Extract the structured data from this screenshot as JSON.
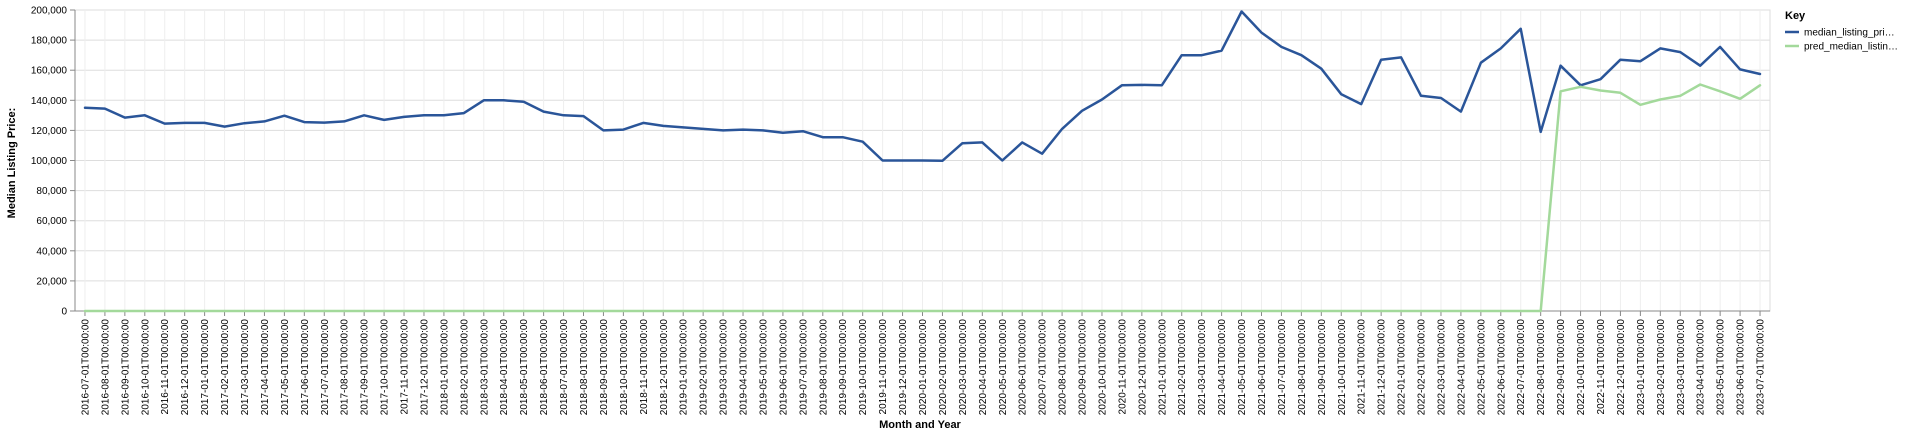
{
  "chart_data": {
    "type": "line",
    "xlabel": "Month and Year",
    "ylabel": "Median Listing Price:",
    "ylim": [
      0,
      200000
    ],
    "y_ticks": [
      "0",
      "20,000",
      "40,000",
      "60,000",
      "80,000",
      "100,000",
      "120,000",
      "140,000",
      "160,000",
      "180,000",
      "200,000"
    ],
    "grid": true,
    "legend": {
      "title": "Key",
      "placement": "right"
    },
    "x": [
      "2016-07-01T00:00:00",
      "2016-08-01T00:00:00",
      "2016-09-01T00:00:00",
      "2016-10-01T00:00:00",
      "2016-11-01T00:00:00",
      "2016-12-01T00:00:00",
      "2017-01-01T00:00:00",
      "2017-02-01T00:00:00",
      "2017-03-01T00:00:00",
      "2017-04-01T00:00:00",
      "2017-05-01T00:00:00",
      "2017-06-01T00:00:00",
      "2017-07-01T00:00:00",
      "2017-08-01T00:00:00",
      "2017-09-01T00:00:00",
      "2017-10-01T00:00:00",
      "2017-11-01T00:00:00",
      "2017-12-01T00:00:00",
      "2018-01-01T00:00:00",
      "2018-02-01T00:00:00",
      "2018-03-01T00:00:00",
      "2018-04-01T00:00:00",
      "2018-05-01T00:00:00",
      "2018-06-01T00:00:00",
      "2018-07-01T00:00:00",
      "2018-08-01T00:00:00",
      "2018-09-01T00:00:00",
      "2018-10-01T00:00:00",
      "2018-11-01T00:00:00",
      "2018-12-01T00:00:00",
      "2019-01-01T00:00:00",
      "2019-02-01T00:00:00",
      "2019-03-01T00:00:00",
      "2019-04-01T00:00:00",
      "2019-05-01T00:00:00",
      "2019-06-01T00:00:00",
      "2019-07-01T00:00:00",
      "2019-08-01T00:00:00",
      "2019-09-01T00:00:00",
      "2019-10-01T00:00:00",
      "2019-11-01T00:00:00",
      "2019-12-01T00:00:00",
      "2020-01-01T00:00:00",
      "2020-02-01T00:00:00",
      "2020-03-01T00:00:00",
      "2020-04-01T00:00:00",
      "2020-05-01T00:00:00",
      "2020-06-01T00:00:00",
      "2020-07-01T00:00:00",
      "2020-08-01T00:00:00",
      "2020-09-01T00:00:00",
      "2020-10-01T00:00:00",
      "2020-11-01T00:00:00",
      "2020-12-01T00:00:00",
      "2021-01-01T00:00:00",
      "2021-02-01T00:00:00",
      "2021-03-01T00:00:00",
      "2021-04-01T00:00:00",
      "2021-05-01T00:00:00",
      "2021-06-01T00:00:00",
      "2021-07-01T00:00:00",
      "2021-08-01T00:00:00",
      "2021-09-01T00:00:00",
      "2021-10-01T00:00:00",
      "2021-11-01T00:00:00",
      "2021-12-01T00:00:00",
      "2022-01-01T00:00:00",
      "2022-02-01T00:00:00",
      "2022-03-01T00:00:00",
      "2022-04-01T00:00:00",
      "2022-05-01T00:00:00",
      "2022-06-01T00:00:00",
      "2022-07-01T00:00:00",
      "2022-08-01T00:00:00",
      "2022-09-01T00:00:00",
      "2022-10-01T00:00:00",
      "2022-11-01T00:00:00",
      "2022-12-01T00:00:00",
      "2023-01-01T00:00:00",
      "2023-02-01T00:00:00",
      "2023-03-01T00:00:00",
      "2023-04-01T00:00:00",
      "2023-05-01T00:00:00",
      "2023-06-01T00:00:00",
      "2023-07-01T00:00:00"
    ],
    "series": [
      {
        "name": "median_listing_pri…",
        "color": "#2a5599",
        "values": [
          135000,
          134500,
          128500,
          130000,
          124500,
          125000,
          125000,
          122500,
          124800,
          126000,
          129800,
          125500,
          125200,
          126000,
          130000,
          127000,
          129000,
          130000,
          130000,
          131500,
          140000,
          140000,
          139000,
          132500,
          130000,
          129500,
          120000,
          120500,
          125000,
          123000,
          122000,
          121000,
          120000,
          120500,
          120000,
          118500,
          119500,
          115500,
          115500,
          112500,
          100000,
          100000,
          100000,
          99800,
          111500,
          112000,
          100000,
          112000,
          104500,
          121000,
          133000,
          140500,
          150000,
          150200,
          150000,
          170000,
          170000,
          173000,
          199000,
          185000,
          175500,
          170000,
          161000,
          144000,
          137500,
          167000,
          168500,
          143000,
          141500,
          132500,
          165000,
          174500,
          187500,
          119000,
          163000,
          150000,
          154000,
          167000,
          166000,
          174500,
          172000,
          163000,
          175500,
          160500,
          157500
        ]
      },
      {
        "name": "pred_median_listin…",
        "color": "#a3d99b",
        "values": [
          0,
          0,
          0,
          0,
          0,
          0,
          0,
          0,
          0,
          0,
          0,
          0,
          0,
          0,
          0,
          0,
          0,
          0,
          0,
          0,
          0,
          0,
          0,
          0,
          0,
          0,
          0,
          0,
          0,
          0,
          0,
          0,
          0,
          0,
          0,
          0,
          0,
          0,
          0,
          0,
          0,
          0,
          0,
          0,
          0,
          0,
          0,
          0,
          0,
          0,
          0,
          0,
          0,
          0,
          0,
          0,
          0,
          0,
          0,
          0,
          0,
          0,
          0,
          0,
          0,
          0,
          0,
          0,
          0,
          0,
          0,
          0,
          0,
          0,
          146000,
          149000,
          146500,
          145000,
          137000,
          140500,
          143000,
          150500,
          146000,
          141000,
          150000
        ]
      }
    ]
  }
}
